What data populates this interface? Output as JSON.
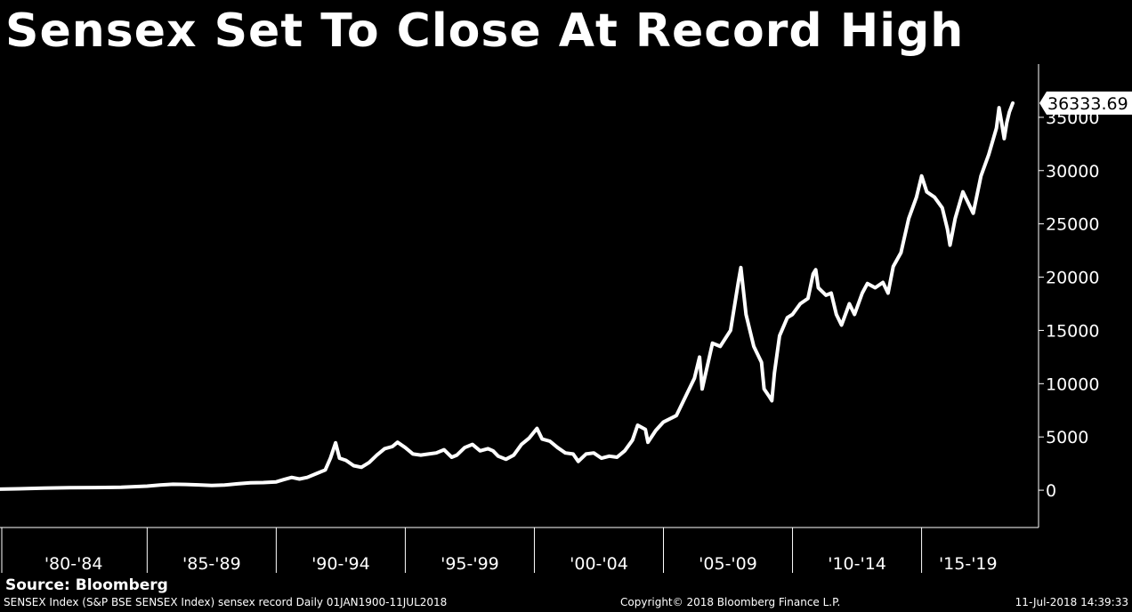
{
  "chart_data": {
    "type": "line",
    "title": "Sensex Set To Close At Record High",
    "source": "Source: Bloomberg",
    "ylim": [
      -3500,
      40000
    ],
    "y_ticks": [
      0,
      5000,
      10000,
      15000,
      20000,
      25000,
      30000,
      35000
    ],
    "last_value_label": "36333.69",
    "x_period_labels": [
      "'80-'84",
      "'85-'89",
      "'90-'94",
      "'95-'99",
      "'00-'04",
      "'05-'09",
      "'10-'14",
      "'15-'19"
    ],
    "x_period_bounds": [
      1979.3,
      1985.0,
      1990.0,
      1995.0,
      2000.0,
      2005.0,
      2010.0,
      2015.0,
      2018.6
    ],
    "series": [
      {
        "points": [
          [
            1979.3,
            100
          ],
          [
            1980.0,
            130
          ],
          [
            1981.0,
            190
          ],
          [
            1982.0,
            230
          ],
          [
            1983.0,
            250
          ],
          [
            1984.0,
            280
          ],
          [
            1985.0,
            380
          ],
          [
            1985.5,
            480
          ],
          [
            1986.0,
            560
          ],
          [
            1986.5,
            540
          ],
          [
            1987.0,
            500
          ],
          [
            1987.5,
            440
          ],
          [
            1988.0,
            480
          ],
          [
            1988.5,
            600
          ],
          [
            1989.0,
            700
          ],
          [
            1989.5,
            720
          ],
          [
            1990.0,
            780
          ],
          [
            1990.3,
            1000
          ],
          [
            1990.6,
            1200
          ],
          [
            1990.9,
            1050
          ],
          [
            1991.2,
            1200
          ],
          [
            1991.6,
            1600
          ],
          [
            1991.9,
            1900
          ],
          [
            1992.1,
            3000
          ],
          [
            1992.3,
            4450
          ],
          [
            1992.45,
            3000
          ],
          [
            1992.7,
            2800
          ],
          [
            1993.0,
            2300
          ],
          [
            1993.3,
            2150
          ],
          [
            1993.6,
            2600
          ],
          [
            1993.9,
            3300
          ],
          [
            1994.2,
            3900
          ],
          [
            1994.5,
            4100
          ],
          [
            1994.7,
            4500
          ],
          [
            1995.0,
            4000
          ],
          [
            1995.3,
            3400
          ],
          [
            1995.6,
            3300
          ],
          [
            1995.9,
            3400
          ],
          [
            1996.2,
            3500
          ],
          [
            1996.5,
            3800
          ],
          [
            1996.8,
            3100
          ],
          [
            1997.0,
            3300
          ],
          [
            1997.3,
            4000
          ],
          [
            1997.6,
            4300
          ],
          [
            1997.9,
            3700
          ],
          [
            1998.2,
            3900
          ],
          [
            1998.4,
            3700
          ],
          [
            1998.6,
            3200
          ],
          [
            1998.9,
            2900
          ],
          [
            1999.2,
            3300
          ],
          [
            1999.5,
            4300
          ],
          [
            1999.8,
            4900
          ],
          [
            2000.1,
            5800
          ],
          [
            2000.3,
            4800
          ],
          [
            2000.6,
            4600
          ],
          [
            2000.9,
            4000
          ],
          [
            2001.2,
            3500
          ],
          [
            2001.5,
            3400
          ],
          [
            2001.7,
            2700
          ],
          [
            2002.0,
            3400
          ],
          [
            2002.3,
            3500
          ],
          [
            2002.6,
            3000
          ],
          [
            2002.9,
            3200
          ],
          [
            2003.2,
            3100
          ],
          [
            2003.5,
            3700
          ],
          [
            2003.8,
            4700
          ],
          [
            2004.0,
            6100
          ],
          [
            2004.3,
            5700
          ],
          [
            2004.4,
            4500
          ],
          [
            2004.7,
            5600
          ],
          [
            2005.0,
            6400
          ],
          [
            2005.5,
            7000
          ],
          [
            2005.9,
            9000
          ],
          [
            2006.2,
            10500
          ],
          [
            2006.4,
            12500
          ],
          [
            2006.5,
            9500
          ],
          [
            2006.9,
            13800
          ],
          [
            2007.2,
            13500
          ],
          [
            2007.6,
            15000
          ],
          [
            2007.9,
            19500
          ],
          [
            2008.0,
            20900
          ],
          [
            2008.2,
            16500
          ],
          [
            2008.5,
            13500
          ],
          [
            2008.8,
            12000
          ],
          [
            2008.9,
            9500
          ],
          [
            2009.1,
            8800
          ],
          [
            2009.2,
            8400
          ],
          [
            2009.3,
            11000
          ],
          [
            2009.5,
            14500
          ],
          [
            2009.8,
            16200
          ],
          [
            2010.0,
            16500
          ],
          [
            2010.3,
            17500
          ],
          [
            2010.6,
            18000
          ],
          [
            2010.8,
            20300
          ],
          [
            2010.9,
            20700
          ],
          [
            2011.0,
            19000
          ],
          [
            2011.3,
            18300
          ],
          [
            2011.5,
            18500
          ],
          [
            2011.7,
            16500
          ],
          [
            2011.9,
            15500
          ],
          [
            2012.2,
            17500
          ],
          [
            2012.4,
            16500
          ],
          [
            2012.7,
            18500
          ],
          [
            2012.9,
            19400
          ],
          [
            2013.2,
            19000
          ],
          [
            2013.5,
            19500
          ],
          [
            2013.7,
            18500
          ],
          [
            2013.9,
            21000
          ],
          [
            2014.2,
            22300
          ],
          [
            2014.5,
            25500
          ],
          [
            2014.8,
            27500
          ],
          [
            2015.0,
            29500
          ],
          [
            2015.2,
            28000
          ],
          [
            2015.5,
            27500
          ],
          [
            2015.8,
            26500
          ],
          [
            2016.0,
            24500
          ],
          [
            2016.1,
            23000
          ],
          [
            2016.3,
            25500
          ],
          [
            2016.6,
            28000
          ],
          [
            2016.9,
            26500
          ],
          [
            2017.0,
            26000
          ],
          [
            2017.3,
            29500
          ],
          [
            2017.6,
            31500
          ],
          [
            2017.9,
            34000
          ],
          [
            2018.0,
            35900
          ],
          [
            2018.1,
            34500
          ],
          [
            2018.2,
            33000
          ],
          [
            2018.3,
            34500
          ],
          [
            2018.4,
            35500
          ],
          [
            2018.53,
            36333.69
          ]
        ]
      }
    ]
  },
  "footer": {
    "left": "SENSEX Index (S&P BSE SENSEX Index) sensex record  Daily 01JAN1900-11JUL2018",
    "center": "Copyright© 2018 Bloomberg Finance L.P.",
    "right": "11-Jul-2018 14:39:33"
  },
  "colors": {
    "background": "#000000",
    "line": "#ffffff",
    "text": "#ffffff"
  }
}
